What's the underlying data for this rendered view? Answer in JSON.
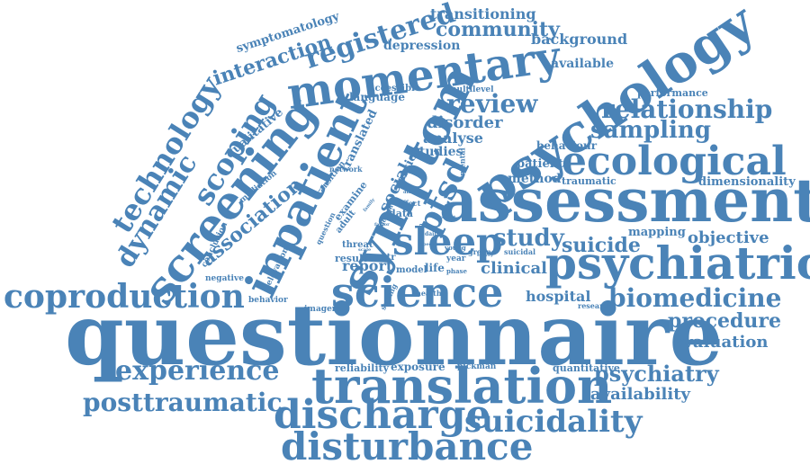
{
  "color": "#4a83b7",
  "words": [
    {
      "text": "questionnaire"
    },
    {
      "text": "assessment"
    },
    {
      "text": "psychology"
    },
    {
      "text": "symptom"
    },
    {
      "text": "translation"
    },
    {
      "text": "disturbance"
    },
    {
      "text": "screening"
    },
    {
      "text": "momentary"
    },
    {
      "text": "psychiatric"
    },
    {
      "text": "inpatient"
    },
    {
      "text": "science"
    },
    {
      "text": "discharge"
    },
    {
      "text": "ecological"
    },
    {
      "text": "sleep"
    },
    {
      "text": "coproduction"
    },
    {
      "text": "experience"
    },
    {
      "text": "suicidality"
    },
    {
      "text": "biomedicine"
    },
    {
      "text": "posttraumatic"
    },
    {
      "text": "technology"
    },
    {
      "text": "dynamic"
    },
    {
      "text": "scoping"
    },
    {
      "text": "registered"
    },
    {
      "text": "relationship"
    },
    {
      "text": "sampling"
    },
    {
      "text": "psychiatry"
    },
    {
      "text": "review"
    },
    {
      "text": "community"
    },
    {
      "text": "procedure"
    },
    {
      "text": "ptsd"
    },
    {
      "text": "study"
    },
    {
      "text": "suicide"
    },
    {
      "text": "interaction"
    },
    {
      "text": "association"
    },
    {
      "text": "objective"
    },
    {
      "text": "evaluation"
    },
    {
      "text": "clinical"
    },
    {
      "text": "availability"
    },
    {
      "text": "transitioning"
    },
    {
      "text": "background"
    },
    {
      "text": "disorder"
    },
    {
      "text": "analyse"
    },
    {
      "text": "method"
    },
    {
      "text": "report"
    },
    {
      "text": "hospital"
    },
    {
      "text": "available"
    },
    {
      "text": "depression"
    },
    {
      "text": "dimensionality"
    },
    {
      "text": "social"
    },
    {
      "text": "symptomatology"
    },
    {
      "text": "qualitative"
    },
    {
      "text": "version"
    },
    {
      "text": "studies"
    },
    {
      "text": "patient"
    },
    {
      "text": "translated"
    },
    {
      "text": "mapping"
    },
    {
      "text": "language"
    },
    {
      "text": "exposure"
    },
    {
      "text": "behaviour"
    },
    {
      "text": "performance"
    },
    {
      "text": "quantitative"
    },
    {
      "text": "reliability"
    },
    {
      "text": "traumatic"
    },
    {
      "text": "accessible"
    },
    {
      "text": "result"
    },
    {
      "text": "life"
    },
    {
      "text": "data"
    },
    {
      "text": "threat"
    },
    {
      "text": "model"
    },
    {
      "text": "examine"
    },
    {
      "text": "adult"
    },
    {
      "text": "year"
    },
    {
      "text": "str"
    },
    {
      "text": "multilevel"
    },
    {
      "text": "mediation"
    },
    {
      "text": "conclusion"
    },
    {
      "text": "transition"
    },
    {
      "text": "negative"
    },
    {
      "text": "behavior"
    },
    {
      "text": "elevation"
    },
    {
      "text": "imagery"
    },
    {
      "text": "network"
    },
    {
      "text": "question"
    },
    {
      "text": "affect"
    },
    {
      "text": "design"
    },
    {
      "text": "greene"
    },
    {
      "text": "pickman"
    },
    {
      "text": "research"
    },
    {
      "text": "mental"
    },
    {
      "text": "health"
    },
    {
      "text": "setting"
    },
    {
      "text": "young"
    },
    {
      "text": "phase"
    },
    {
      "text": "suicidal"
    },
    {
      "text": "limitation"
    },
    {
      "text": "daily"
    },
    {
      "text": "factor"
    },
    {
      "text": "peer"
    },
    {
      "text": "family"
    },
    {
      "text": "diary"
    },
    {
      "text": "cohort"
    },
    {
      "text": "survey"
    },
    {
      "text": "scale"
    }
  ]
}
